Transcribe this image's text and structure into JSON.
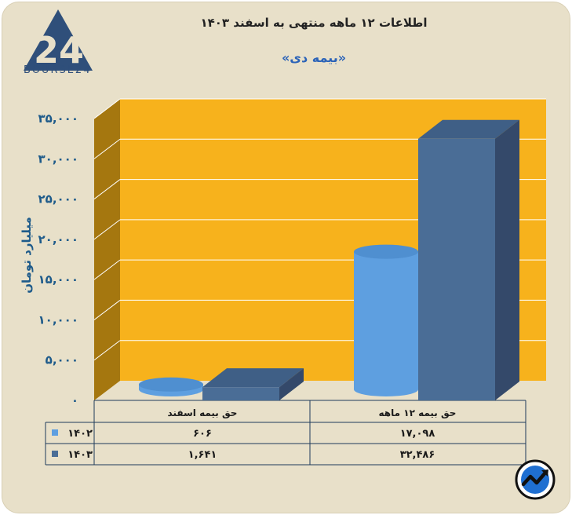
{
  "header": {
    "title": "اطلاعات ۱۲ ماهه منتهی به اسفند ۱۴۰۳",
    "subtitle": "«بیمه دی»"
  },
  "logo": {
    "text": "BOURSE24",
    "icon": "bourse24-logo-icon"
  },
  "badge": {
    "icon": "trend-arrow-icon"
  },
  "colors": {
    "background": "#e8e0c9",
    "plot_back": "#f7b21c",
    "plot_side": "#a5770f",
    "series_1402": "#5e9fe0",
    "series_1403": "#4a6d96"
  },
  "chart_data": {
    "type": "bar",
    "ylabel": "میلیارد تومان",
    "ylim": [
      0,
      35000
    ],
    "yticks": [
      "۰",
      "۵,۰۰۰",
      "۱۰,۰۰۰",
      "۱۵,۰۰۰",
      "۲۰,۰۰۰",
      "۲۵,۰۰۰",
      "۳۰,۰۰۰",
      "۳۵,۰۰۰"
    ],
    "grid": true,
    "categories": [
      "حق بیمه اسفند",
      "حق بیمه ۱۲ ماهه"
    ],
    "series": [
      {
        "name": "۱۴۰۲",
        "shape": "cylinder",
        "values": [
          606,
          17098
        ],
        "labels": [
          "۶۰۶",
          "۱۷,۰۹۸"
        ]
      },
      {
        "name": "۱۴۰۳",
        "shape": "box",
        "values": [
          1641,
          32486
        ],
        "labels": [
          "۱,۶۴۱",
          "۳۲,۴۸۶"
        ]
      }
    ]
  }
}
